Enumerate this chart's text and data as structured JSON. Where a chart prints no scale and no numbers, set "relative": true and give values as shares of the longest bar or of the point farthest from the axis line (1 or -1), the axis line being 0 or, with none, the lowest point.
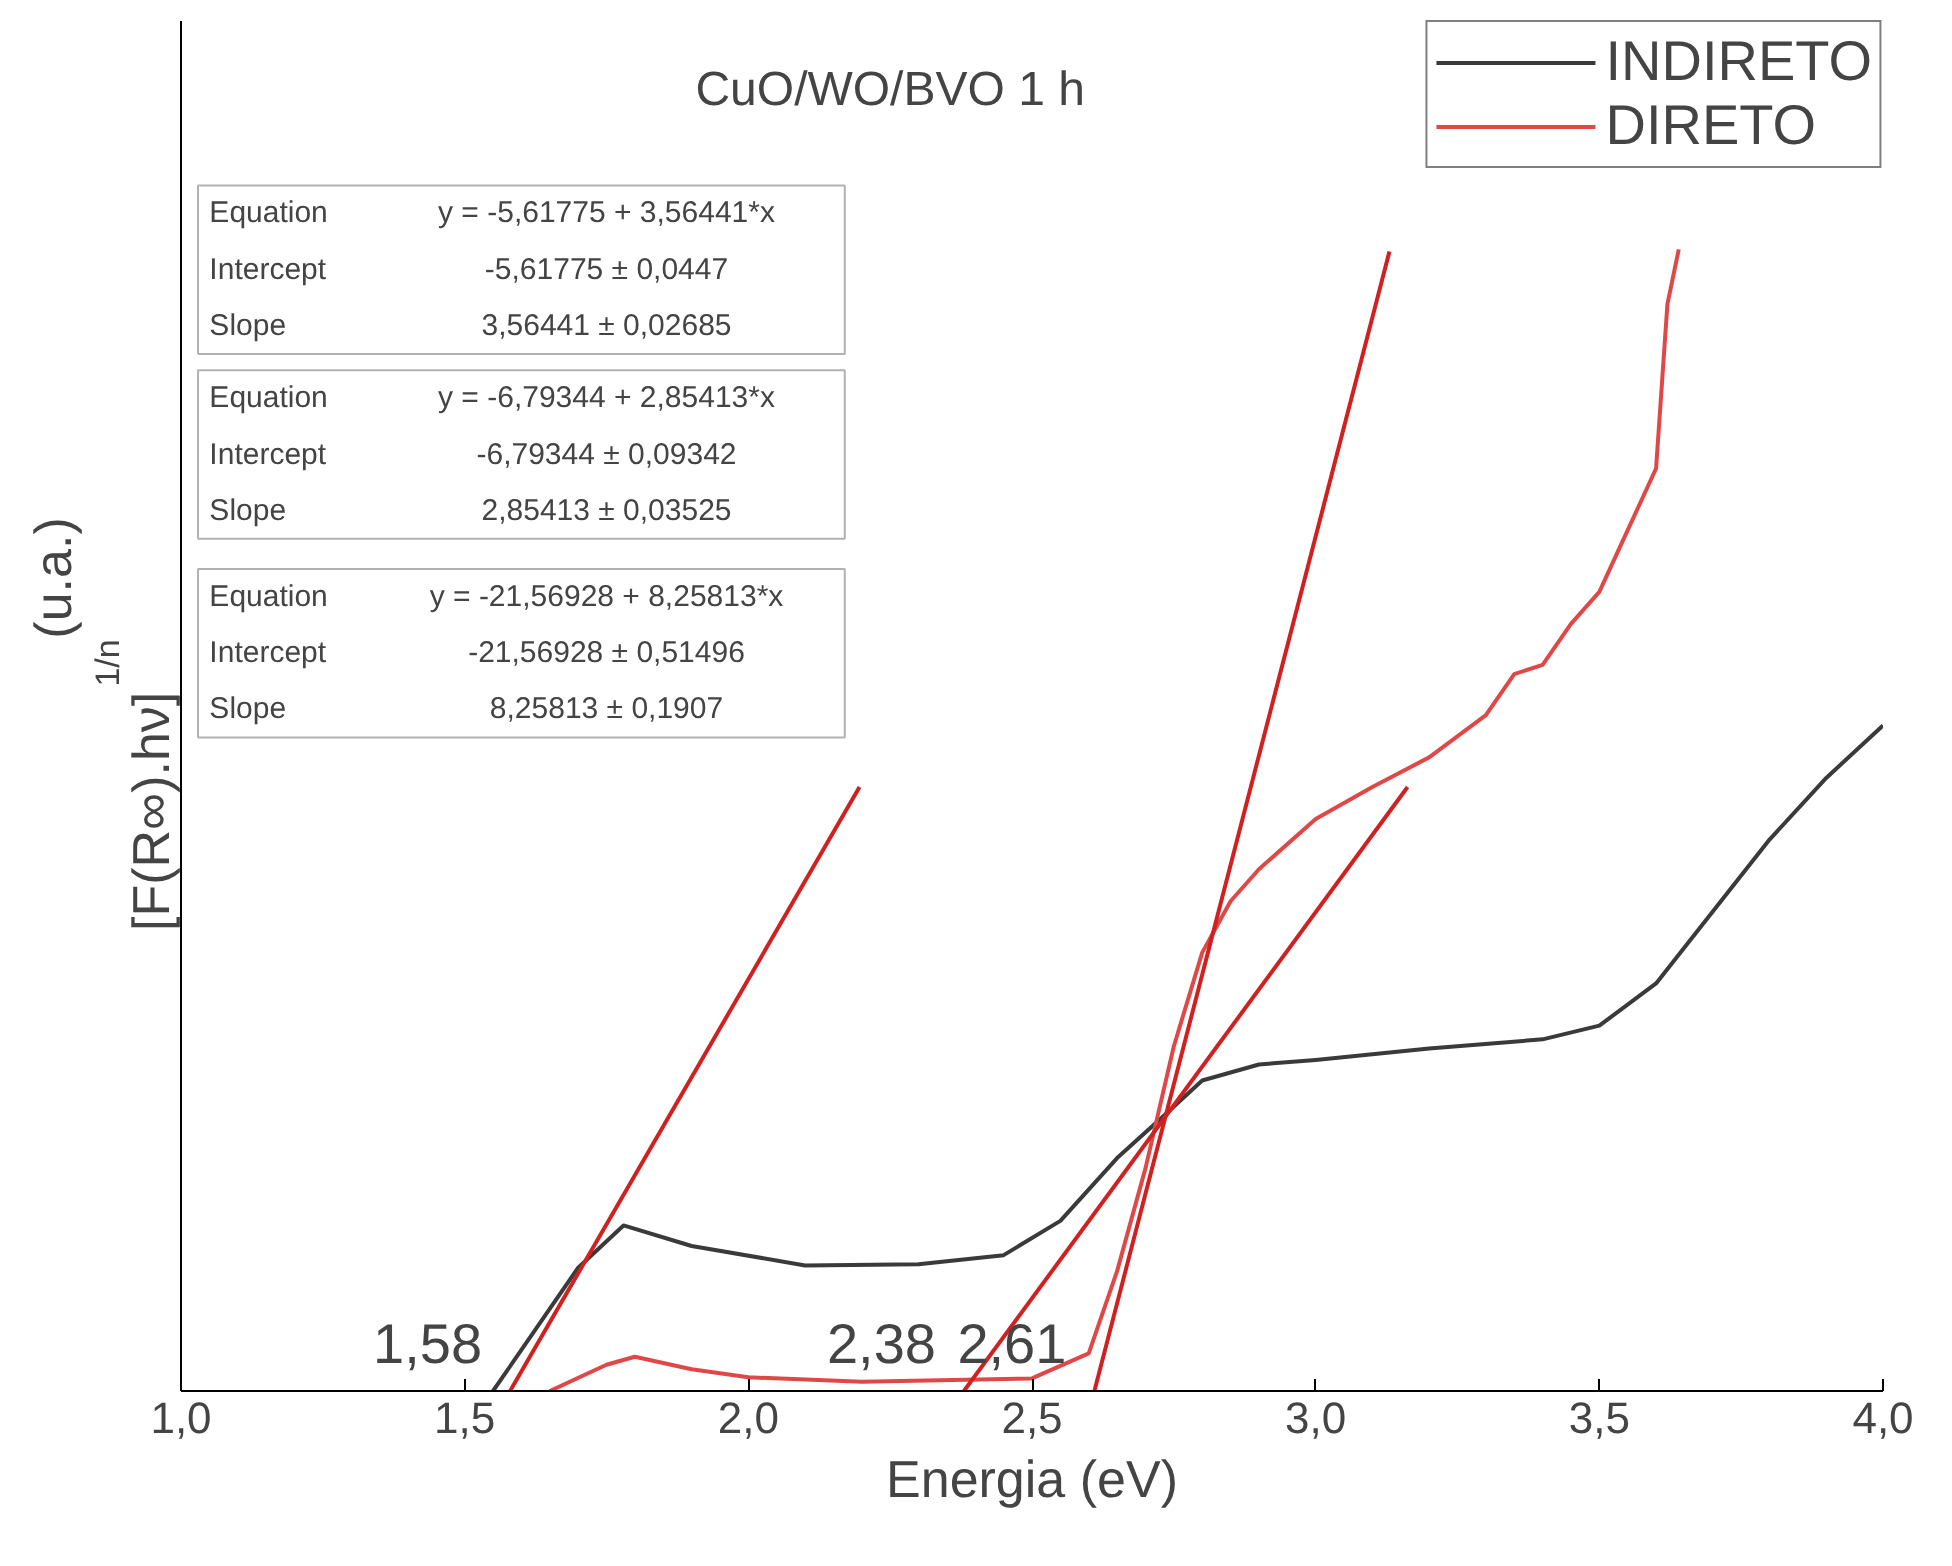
{
  "chart_data": {
    "type": "line",
    "title": "CuO/WO/BVO 1 h",
    "xlabel": "Energia (eV)",
    "ylabel": "[F(R∞).hν]$^{1/n}$ (u.a.)",
    "relative": true,
    "xlim": [
      1,
      4
    ],
    "xticks": [
      {
        "value": 1,
        "label": "1,0"
      },
      {
        "value": 1.5,
        "label": "1,5"
      },
      {
        "value": 2,
        "label": "2,0"
      },
      {
        "value": 2.5,
        "label": "2,5"
      },
      {
        "value": 3,
        "label": "3,0"
      },
      {
        "value": 3.5,
        "label": "3,5"
      },
      {
        "value": 4,
        "label": "4,0"
      }
    ],
    "grid": false,
    "legend": "top right",
    "marker": "none",
    "line_style": "solid",
    "series": [
      {
        "name": "INDIRETO",
        "color": "#3a3a3a",
        "x": [
          1.55,
          1.6,
          1.7,
          1.78,
          1.9,
          2.1,
          2.3,
          2.45,
          2.55,
          2.65,
          2.73,
          2.8,
          2.9,
          3.0,
          3.2,
          3.4,
          3.5,
          3.6,
          3.7,
          3.8,
          3.9,
          4.0
        ],
        "values": [
          0,
          0.036,
          0.108,
          0.145,
          0.127,
          0.11,
          0.111,
          0.119,
          0.149,
          0.204,
          0.24,
          0.272,
          0.286,
          0.29,
          0.3,
          0.308,
          0.32,
          0.357,
          0.42,
          0.483,
          0.537,
          0.583
        ]
      },
      {
        "name": "DIRETO",
        "color": "#e04848",
        "x": [
          1.65,
          1.75,
          1.8,
          1.9,
          2.0,
          2.2,
          2.5,
          2.6,
          2.65,
          2.7,
          2.75,
          2.8,
          2.85,
          2.9,
          3.0,
          3.1,
          3.2,
          3.3,
          3.35,
          3.4,
          3.45,
          3.5,
          3.55,
          3.6,
          3.62,
          3.64
        ],
        "values": [
          0,
          0.023,
          0.03,
          0.019,
          0.012,
          0.008,
          0.011,
          0.033,
          0.105,
          0.195,
          0.302,
          0.384,
          0.429,
          0.457,
          0.501,
          0.529,
          0.555,
          0.592,
          0.628,
          0.636,
          0.672,
          0.7,
          0.754,
          0.808,
          0.952,
          1
        ]
      },
      {
        "color": "#d02020",
        "x": [
          1.58,
          2.196
        ],
        "values": [
          0,
          0.529
        ]
      },
      {
        "color": "#d02020",
        "x": [
          2.38,
          3.162
        ],
        "values": [
          0,
          0.529
        ]
      },
      {
        "color": "#d02020",
        "x": [
          2.61,
          3.13
        ],
        "values": [
          0,
          0.998
        ]
      }
    ],
    "annotations": [
      "Equation",
      "y = -5,61775 + 3,56441*x",
      "Intercept",
      "-5,61775 ± 0,0447",
      "Slope",
      "3,56441 ± 0,02685",
      "Equation",
      "y = -6,79344 + 2,85413*x",
      "Intercept",
      "-6,79344 ± 0,09342",
      "Slope",
      "2,85413 ± 0,03525",
      "Equation",
      "y = -21,56928 + 8,25813*x",
      "Intercept",
      "-21,56928 ± 0,51496",
      "Slope",
      "8,25813 ± 0,1907",
      {
        "text": "1,58",
        "x": 1.58,
        "y": 0
      },
      {
        "text": "2,38",
        "x": 2.38,
        "y": 0
      },
      {
        "text": "2,61",
        "x": 2.61,
        "y": 0
      }
    ]
  }
}
